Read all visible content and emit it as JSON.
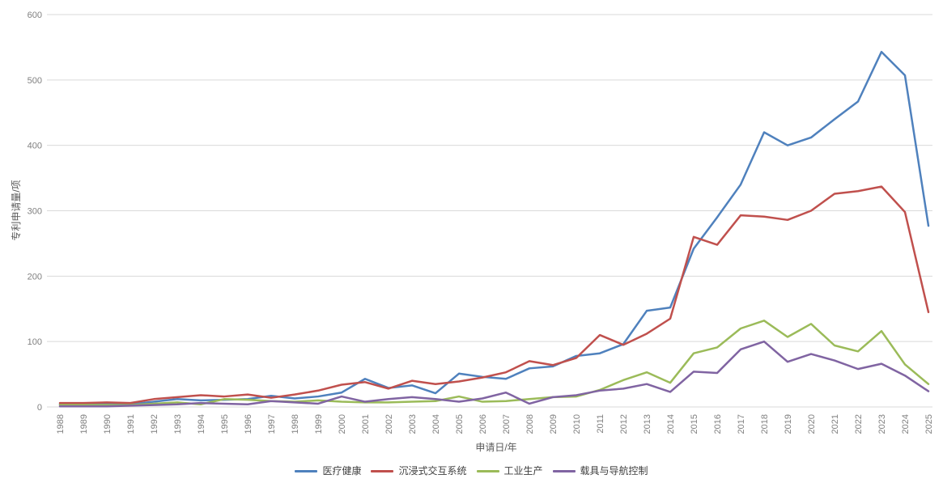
{
  "chart_data": {
    "type": "line",
    "title": "",
    "xlabel": "申请日/年",
    "ylabel": "专利申请量/项",
    "ylim": [
      0,
      600
    ],
    "yticks": [
      0,
      100,
      200,
      300,
      400,
      500,
      600
    ],
    "grid": true,
    "legend_position": "bottom",
    "categories": [
      "1988",
      "1989",
      "1990",
      "1991",
      "1992",
      "1993",
      "1994",
      "1995",
      "1996",
      "1997",
      "1998",
      "1999",
      "2000",
      "2001",
      "2002",
      "2003",
      "2004",
      "2005",
      "2006",
      "2007",
      "2008",
      "2009",
      "2010",
      "2011",
      "2012",
      "2013",
      "2014",
      "2015",
      "2016",
      "2017",
      "2018",
      "2019",
      "2020",
      "2021",
      "2022",
      "2023",
      "2024",
      "2025"
    ],
    "series": [
      {
        "name": "医疗健康",
        "color": "#4F81BD",
        "values": [
          4,
          4,
          5,
          4,
          8,
          12,
          10,
          11,
          12,
          17,
          13,
          16,
          22,
          43,
          29,
          33,
          21,
          51,
          46,
          43,
          59,
          62,
          78,
          82,
          96,
          147,
          152,
          242,
          290,
          340,
          420,
          400,
          412,
          440,
          467,
          543,
          507,
          277
        ]
      },
      {
        "name": "沉浸式交互系统",
        "color": "#C0504D",
        "values": [
          6,
          6,
          7,
          6,
          12,
          15,
          18,
          16,
          19,
          14,
          19,
          25,
          34,
          38,
          28,
          40,
          35,
          39,
          45,
          53,
          70,
          64,
          75,
          110,
          95,
          112,
          135,
          260,
          248,
          293,
          291,
          286,
          300,
          326,
          330,
          337,
          298,
          145
        ]
      },
      {
        "name": "工业生产",
        "color": "#9BBB59",
        "values": [
          3,
          3,
          3,
          3,
          5,
          7,
          4,
          12,
          11,
          9,
          8,
          10,
          8,
          7,
          7,
          8,
          9,
          16,
          8,
          9,
          12,
          15,
          16,
          26,
          41,
          53,
          37,
          82,
          91,
          120,
          132,
          107,
          127,
          94,
          85,
          116,
          65,
          35
        ]
      },
      {
        "name": "载具与导航控制",
        "color": "#8064A2",
        "values": [
          1,
          1,
          1,
          2,
          3,
          4,
          6,
          5,
          4,
          9,
          7,
          5,
          16,
          8,
          12,
          15,
          12,
          8,
          13,
          22,
          5,
          15,
          18,
          25,
          28,
          35,
          23,
          54,
          52,
          88,
          100,
          69,
          81,
          71,
          58,
          66,
          48,
          24
        ]
      }
    ]
  },
  "styles": {
    "background": "#FFFFFF",
    "grid_color": "#D9D9D9",
    "tick_label_color": "#808080",
    "axis_title_color": "#595959",
    "legend_text_color": "#3F3F3F"
  }
}
